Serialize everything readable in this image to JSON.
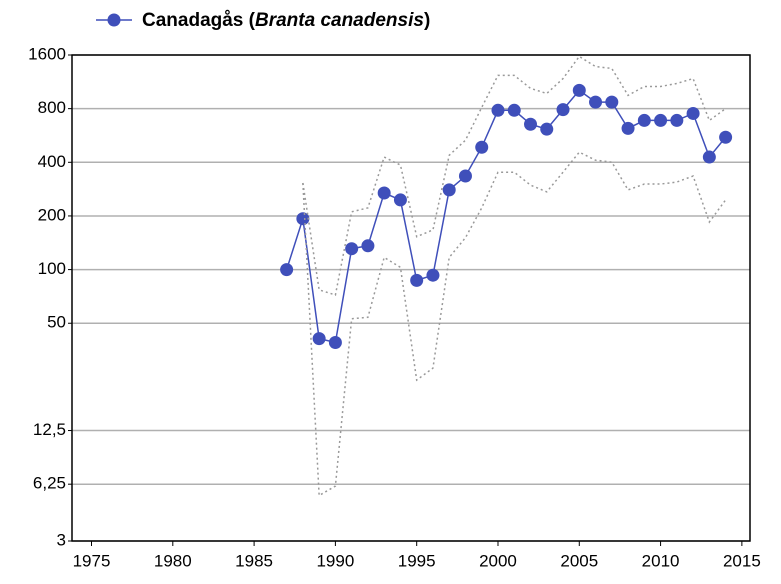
{
  "chart_data": {
    "type": "line",
    "log_scale_y": true,
    "grid": true,
    "x": [
      1987,
      1988,
      1989,
      1990,
      1991,
      1992,
      1993,
      1994,
      1995,
      1996,
      1997,
      1998,
      1999,
      2000,
      2001,
      2002,
      2003,
      2004,
      2005,
      2006,
      2007,
      2008,
      2009,
      2010,
      2011,
      2012,
      2013,
      2014
    ],
    "series": [
      {
        "name": "Canadagås (Branta canadensis)",
        "color": "#3f4fba",
        "style": "solid",
        "markers": true,
        "values": [
          100,
          193,
          41,
          39,
          131,
          136,
          269,
          246,
          87,
          93,
          280,
          335,
          486,
          783,
          783,
          654,
          614,
          790,
          1013,
          870,
          870,
          620,
          687,
          687,
          687,
          752,
          428,
          553
        ]
      },
      {
        "color": "#999999",
        "style": "dotted",
        "markers": false,
        "values": [
          null,
          306,
          77,
          72,
          211,
          222,
          428,
          386,
          153,
          167,
          438,
          532,
          813,
          1230,
          1230,
          1040,
          973,
          1180,
          1570,
          1378,
          1345,
          950,
          1065,
          1065,
          1108,
          1180,
          687,
          800
        ]
      },
      {
        "color": "#999999",
        "style": "dotted",
        "markers": false,
        "values": [
          null,
          306,
          5.4,
          6.1,
          53,
          54,
          117,
          103,
          24,
          28,
          117,
          151,
          222,
          352,
          352,
          298,
          273,
          352,
          456,
          411,
          401,
          280,
          302,
          302,
          310,
          335,
          185,
          246
        ]
      }
    ],
    "xlim": [
      1973.8,
      2015.5
    ],
    "xticks": [
      1975,
      1980,
      1985,
      1990,
      1995,
      2000,
      2005,
      2010,
      2015
    ],
    "ylim": [
      3,
      1600
    ],
    "yticks": [
      3,
      {
        "value": 6.25,
        "label": "6,25"
      },
      {
        "value": 12.5,
        "label": "12,5"
      },
      50,
      100,
      200,
      400,
      800,
      1600
    ]
  }
}
